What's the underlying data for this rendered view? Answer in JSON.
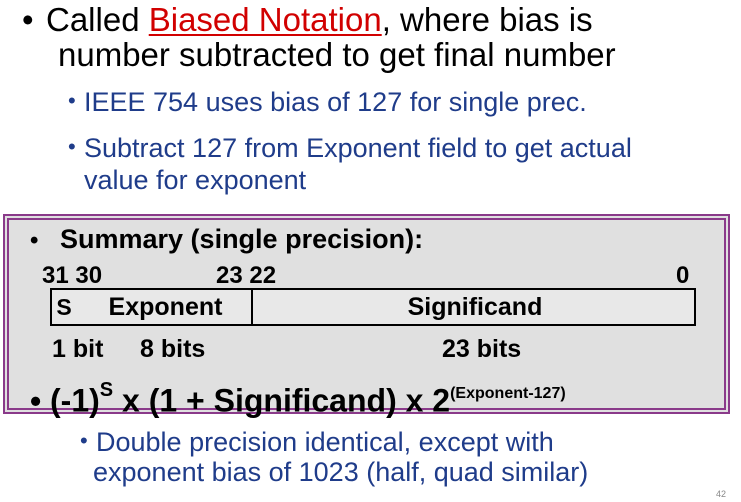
{
  "bullet1": {
    "prefix": "Called ",
    "term": "Biased Notation",
    "suffix": ", where bias is",
    "line2": "number subtracted to get final number"
  },
  "sub_bullets": [
    "IEEE 754 uses bias of 127 for single prec.",
    "Subtract 127 from Exponent field to get actual",
    "value for exponent"
  ],
  "summary": {
    "title": "Summary (single precision):",
    "bit_positions": {
      "b31": "31",
      "b30": "30",
      "b23": "23",
      "b22": "22",
      "b0": "0"
    },
    "fields": {
      "sign": "S",
      "exponent": "Exponent",
      "significand": "Significand"
    },
    "widths": {
      "sign": "1 bit",
      "exponent": "8 bits",
      "significand": "23 bits"
    },
    "formula": {
      "part1": "(-1)",
      "sup1": "S",
      "part2": " x (1 + Significand) x 2",
      "sup2": "(Exponent-127)"
    }
  },
  "bottom_bullet": {
    "line1": "Double precision identical, except with",
    "line2": "exponent bias of 1023 (half, quad similar)"
  },
  "page_number": "42",
  "colors": {
    "term": "#d10000",
    "sub_text": "#1f3c8a",
    "box_border": "#8a3a8a",
    "box_fill": "#e0e0e0"
  }
}
